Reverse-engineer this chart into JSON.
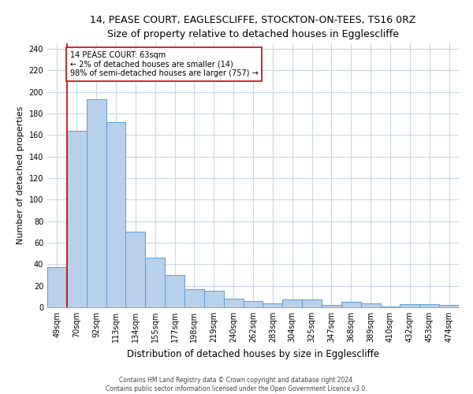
{
  "title": "14, PEASE COURT, EAGLESCLIFFE, STOCKTON-ON-TEES, TS16 0RZ",
  "subtitle": "Size of property relative to detached houses in Egglescliffe",
  "xlabel": "Distribution of detached houses by size in Egglescliffe",
  "ylabel": "Number of detached properties",
  "categories": [
    "49sqm",
    "70sqm",
    "92sqm",
    "113sqm",
    "134sqm",
    "155sqm",
    "177sqm",
    "198sqm",
    "219sqm",
    "240sqm",
    "262sqm",
    "283sqm",
    "304sqm",
    "325sqm",
    "347sqm",
    "368sqm",
    "389sqm",
    "410sqm",
    "432sqm",
    "453sqm",
    "474sqm"
  ],
  "values": [
    37,
    164,
    193,
    172,
    70,
    46,
    30,
    17,
    15,
    8,
    6,
    4,
    7,
    7,
    2,
    5,
    4,
    1,
    3,
    3,
    2
  ],
  "bar_color": "#b8d0ea",
  "bar_edge_color": "#5b9bd5",
  "vline_color": "#cc0000",
  "annotation_text": "14 PEASE COURT: 63sqm\n← 2% of detached houses are smaller (14)\n98% of semi-detached houses are larger (757) →",
  "annotation_box_color": "#ffffff",
  "annotation_box_edge": "#cc0000",
  "ylim": [
    0,
    245
  ],
  "yticks": [
    0,
    20,
    40,
    60,
    80,
    100,
    120,
    140,
    160,
    180,
    200,
    220,
    240
  ],
  "footer": "Contains HM Land Registry data © Crown copyright and database right 2024.\nContains public sector information licensed under the Open Government Licence v3.0.",
  "bg_color": "#ffffff",
  "grid_color": "#c8d8e8",
  "title_fontsize": 9,
  "subtitle_fontsize": 8.5,
  "xlabel_fontsize": 8.5,
  "ylabel_fontsize": 8,
  "tick_fontsize": 7,
  "footer_fontsize": 5.5,
  "ann_fontsize": 7
}
